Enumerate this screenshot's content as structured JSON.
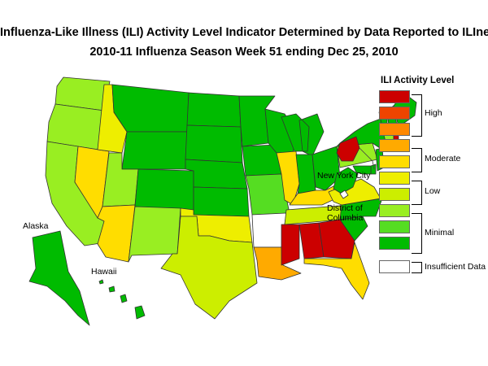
{
  "title_line1": "Influenza-Like Illness (ILI) Activity Level Indicator Determined by Data Reported to ILInet",
  "title_line2": "2010-11  Influenza Season Week  51 ending Dec 25, 2010",
  "labels": {
    "alaska": "Alaska",
    "hawaii": "Hawaii",
    "nyc": "New York City",
    "dc_line1": "District of",
    "dc_line2": "Columbia"
  },
  "legend": {
    "title": "ILI Activity Level",
    "levels": [
      {
        "level": 10,
        "color": "#cc0000"
      },
      {
        "level": 9,
        "color": "#ee4400"
      },
      {
        "level": 8,
        "color": "#ff8800"
      },
      {
        "level": 7,
        "color": "#ffaa00"
      },
      {
        "level": 6,
        "color": "#ffdd00"
      },
      {
        "level": 5,
        "color": "#eeee00"
      },
      {
        "level": 4,
        "color": "#ccee00"
      },
      {
        "level": 3,
        "color": "#99ee22"
      },
      {
        "level": 2,
        "color": "#55dd22"
      },
      {
        "level": 1,
        "color": "#00bb00"
      },
      {
        "level": 0,
        "color": "#ffffff"
      }
    ],
    "groups": {
      "high": "High",
      "moderate": "Moderate",
      "low": "Low",
      "minimal": "Minimal",
      "insufficient": "Insufficient Data"
    }
  },
  "states": {
    "WA": 3,
    "OR": 3,
    "CA": 3,
    "NV": 6,
    "ID": 5,
    "MT": 1,
    "WY": 1,
    "UT": 3,
    "AZ": 6,
    "CO": 1,
    "NM": 3,
    "ND": 1,
    "SD": 1,
    "NE": 1,
    "KS": 1,
    "OK": 5,
    "TX": 4,
    "MN": 1,
    "IA": 1,
    "MO": 2,
    "AR": 0,
    "LA": 7,
    "WI": 1,
    "IL": 6,
    "MI": 1,
    "IN": 1,
    "OH": 1,
    "KY": 6,
    "TN": 4,
    "MS": 10,
    "AL": 10,
    "GA": 10,
    "FL": 6,
    "SC": 1,
    "NC": 1,
    "VA": 5,
    "WV": 1,
    "PA": 3,
    "NY": 1,
    "VT": 1,
    "NH": 1,
    "ME": 1,
    "MA": 3,
    "CT": 3,
    "RI": 10,
    "NJ": 1,
    "DE": 1,
    "MD": 1,
    "AK": 1,
    "HI": 1,
    "NYC": 10,
    "DC": 0
  }
}
